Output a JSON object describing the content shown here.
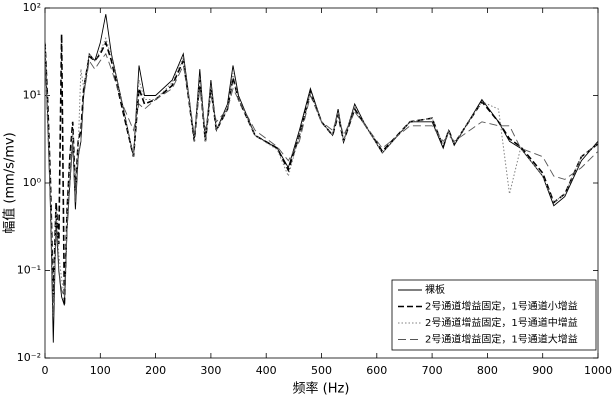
{
  "chart_data": {
    "type": "line",
    "xlabel": "频率 (Hz)",
    "ylabel": "幅值 (mm/s/mv)",
    "log_y": true,
    "legend": "lower right",
    "x": [
      0,
      5,
      10,
      15,
      20,
      25,
      30,
      35,
      40,
      45,
      50,
      55,
      60,
      65,
      70,
      80,
      90,
      100,
      110,
      120,
      140,
      160,
      170,
      180,
      200,
      230,
      250,
      260,
      270,
      280,
      290,
      300,
      310,
      330,
      340,
      350,
      380,
      420,
      440,
      460,
      480,
      500,
      520,
      530,
      540,
      560,
      580,
      610,
      660,
      700,
      720,
      730,
      740,
      790,
      820,
      840,
      860,
      900,
      920,
      940,
      970,
      1000
    ],
    "series": [
      {
        "name": "裸板",
        "color": "#000000",
        "line_style": "solid",
        "values": [
          40,
          5,
          0.5,
          0.015,
          0.4,
          0.1,
          0.05,
          0.04,
          0.3,
          1,
          3,
          0.5,
          2,
          3,
          10,
          30,
          25,
          40,
          85,
          30,
          8,
          2,
          22,
          10,
          10,
          15,
          30,
          10,
          3,
          20,
          3,
          15,
          4,
          8,
          22,
          10,
          3.5,
          2.5,
          1.5,
          4,
          12,
          5,
          3.5,
          7,
          3,
          8,
          4.5,
          2.2,
          5,
          5,
          2.5,
          4,
          2.7,
          9,
          5,
          3,
          2.5,
          1.2,
          0.55,
          0.7,
          1.8,
          3
        ]
      },
      {
        "name": "2号通道增益固定，1号通道小增益",
        "color": "#000000",
        "line_style": "dashed",
        "values": [
          40,
          8,
          1,
          0.05,
          0.6,
          0.2,
          50,
          0.04,
          0.5,
          2,
          5,
          0.8,
          3,
          4,
          12,
          28,
          25,
          30,
          40,
          25,
          7,
          2,
          12,
          8,
          9,
          13,
          25,
          9,
          3,
          15,
          3,
          12,
          4,
          7,
          16,
          9,
          3.5,
          2.5,
          1.4,
          3.5,
          11,
          5,
          3.5,
          6,
          3,
          7,
          4.5,
          2.3,
          5,
          5.5,
          2.6,
          4,
          2.8,
          8.5,
          5,
          3.2,
          2.6,
          1.3,
          0.6,
          0.75,
          2,
          2.8
        ]
      },
      {
        "name": "2号通道增益固定，1号通道中增益",
        "color": "#808080",
        "line_style": "dotted",
        "values": [
          40,
          6,
          0.8,
          0.03,
          0.5,
          0.15,
          0.08,
          0.05,
          0.4,
          1.5,
          4,
          0.7,
          2.5,
          20,
          12,
          30,
          25,
          32,
          45,
          28,
          8,
          2,
          15,
          9,
          9,
          14,
          27,
          9,
          3,
          16,
          3,
          13,
          4,
          7,
          18,
          9,
          3.5,
          2.4,
          1.2,
          3.5,
          11,
          5,
          3.5,
          6.5,
          3,
          7.5,
          4.5,
          2.2,
          5,
          5.5,
          2.7,
          4,
          2.8,
          8.5,
          7,
          0.75,
          2.5,
          1.2,
          0.6,
          0.75,
          2,
          2.8
        ]
      },
      {
        "name": "2号通道增益固定，1号通道大增益",
        "color": "#555555",
        "line_style": "dash",
        "values": [
          30,
          4,
          0.6,
          0.03,
          0.3,
          0.1,
          0.06,
          0.05,
          0.3,
          1,
          3,
          0.6,
          2,
          3,
          10,
          25,
          20,
          25,
          30,
          20,
          8,
          4,
          8,
          7,
          9,
          12,
          22,
          10,
          3.5,
          12,
          4,
          10,
          5,
          7,
          12,
          9,
          4,
          2.6,
          1.8,
          3,
          10,
          5,
          4,
          6,
          3.5,
          6.5,
          4.5,
          2.5,
          4.5,
          4.5,
          3,
          3.5,
          3,
          5,
          4.5,
          4.5,
          2.5,
          2,
          1.2,
          1.1,
          1.5,
          2.3
        ]
      }
    ],
    "xlim": [
      0,
      1000
    ],
    "xticks": [
      0,
      100,
      200,
      300,
      400,
      500,
      600,
      700,
      800,
      900,
      1000
    ],
    "ylim": [
      0.01,
      100
    ],
    "yticks": [
      {
        "value": 0.01,
        "label": "10⁻²"
      },
      {
        "value": 0.1,
        "label": "10⁻¹"
      },
      {
        "value": 1,
        "label": "10⁰"
      },
      {
        "value": 10,
        "label": "10¹"
      },
      {
        "value": 100,
        "label": "10²"
      }
    ]
  }
}
